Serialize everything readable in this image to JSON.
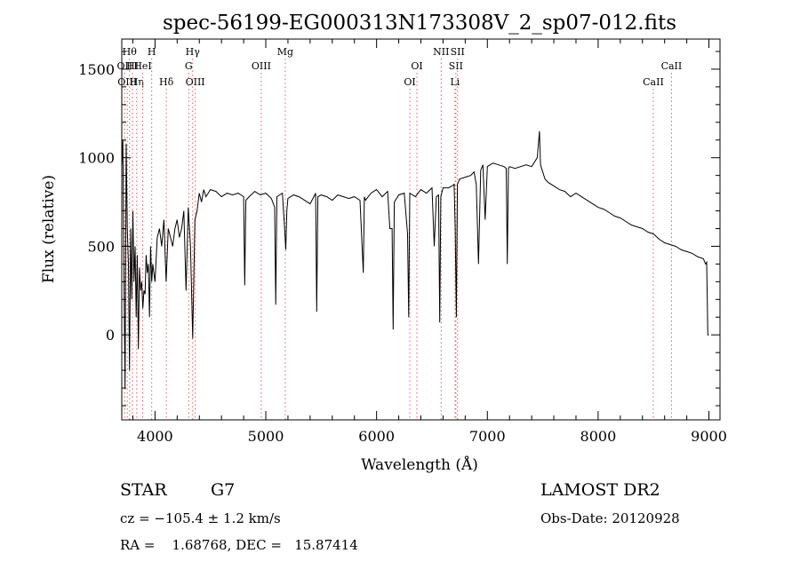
{
  "chart_data": {
    "type": "line",
    "title": "spec-56199-EG000313N173308V_2_sp07-012.fits",
    "xlabel": "Wavelength (Å)",
    "ylabel": "Flux (relative)",
    "xlim": [
      3700,
      9100
    ],
    "ylim": [
      -480,
      1670
    ],
    "x_ticks": [
      4000,
      5000,
      6000,
      7000,
      8000,
      9000
    ],
    "y_ticks": [
      0,
      500,
      1000,
      1500
    ],
    "grid": false,
    "series": [
      {
        "x": [
          3700,
          3710,
          3720,
          3730,
          3740,
          3750,
          3760,
          3770,
          3780,
          3790,
          3800,
          3810,
          3820,
          3830,
          3840,
          3850,
          3860,
          3870,
          3880,
          3890,
          3900,
          3910,
          3920,
          3930,
          3940,
          3950,
          3960,
          3970,
          3980,
          3990,
          4000,
          4020,
          4040,
          4060,
          4080,
          4100,
          4120,
          4140,
          4160,
          4180,
          4200,
          4220,
          4240,
          4260,
          4280,
          4300,
          4320,
          4340,
          4360,
          4380,
          4400,
          4420,
          4440,
          4460,
          4480,
          4500,
          4550,
          4600,
          4650,
          4700,
          4750,
          4800,
          4810,
          4820,
          4850,
          4900,
          4950,
          5000,
          5050,
          5080,
          5090,
          5100,
          5150,
          5170,
          5180,
          5190,
          5200,
          5250,
          5300,
          5350,
          5400,
          5450,
          5460,
          5470,
          5500,
          5550,
          5600,
          5650,
          5700,
          5750,
          5800,
          5850,
          5880,
          5890,
          5900,
          5950,
          6000,
          6050,
          6100,
          6120,
          6140,
          6150,
          6160,
          6200,
          6250,
          6280,
          6290,
          6300,
          6350,
          6400,
          6450,
          6500,
          6520,
          6540,
          6560,
          6570,
          6580,
          6600,
          6650,
          6680,
          6700,
          6710,
          6720,
          6730,
          6750,
          6800,
          6850,
          6880,
          6900,
          6920,
          6940,
          6960,
          6980,
          7000,
          7050,
          7100,
          7150,
          7170,
          7180,
          7190,
          7200,
          7250,
          7300,
          7350,
          7400,
          7450,
          7470,
          7480,
          7490,
          7500,
          7510,
          7520,
          7550,
          7600,
          7650,
          7700,
          7750,
          7800,
          7850,
          7900,
          7950,
          8000,
          8050,
          8100,
          8150,
          8200,
          8250,
          8300,
          8350,
          8400,
          8450,
          8500,
          8550,
          8600,
          8650,
          8700,
          8750,
          8800,
          8850,
          8900,
          8950,
          8970,
          8980,
          8990,
          9000
        ],
        "y": [
          950,
          1100,
          300,
          -300,
          1080,
          600,
          400,
          -200,
          600,
          200,
          700,
          300,
          500,
          100,
          450,
          -80,
          380,
          250,
          300,
          150,
          250,
          230,
          450,
          350,
          400,
          100,
          500,
          300,
          400,
          350,
          300,
          550,
          600,
          500,
          650,
          300,
          600,
          550,
          500,
          600,
          650,
          550,
          600,
          700,
          250,
          720,
          500,
          -20,
          650,
          700,
          800,
          750,
          820,
          780,
          800,
          820,
          810,
          780,
          800,
          790,
          800,
          780,
          280,
          760,
          780,
          810,
          790,
          800,
          770,
          720,
          170,
          780,
          800,
          600,
          480,
          700,
          770,
          790,
          780,
          760,
          740,
          800,
          130,
          780,
          790,
          780,
          760,
          790,
          780,
          770,
          780,
          760,
          350,
          780,
          760,
          800,
          820,
          780,
          810,
          600,
          600,
          30,
          750,
          790,
          800,
          570,
          100,
          800,
          780,
          820,
          800,
          830,
          500,
          780,
          790,
          70,
          780,
          830,
          830,
          840,
          850,
          600,
          100,
          850,
          880,
          890,
          900,
          920,
          850,
          400,
          930,
          960,
          650,
          950,
          970,
          960,
          950,
          940,
          400,
          940,
          950,
          940,
          950,
          960,
          950,
          1000,
          1150,
          960,
          940,
          920,
          900,
          880,
          860,
          840,
          820,
          810,
          780,
          800,
          780,
          760,
          740,
          720,
          710,
          690,
          670,
          660,
          640,
          620,
          610,
          600,
          580,
          570,
          540,
          520,
          510,
          500,
          480,
          470,
          460,
          440,
          430,
          400,
          410,
          0,
          0
        ]
      }
    ],
    "line_markers": [
      {
        "wavelength": 3727,
        "label": "OII",
        "row": 1
      },
      {
        "wavelength": 3750,
        "label": "OIII",
        "row": 2
      },
      {
        "wavelength": 3770,
        "label": "Hθ",
        "row": 0
      },
      {
        "wavelength": 3797,
        "label": "HI",
        "row": 1
      },
      {
        "wavelength": 3835,
        "label": "Hη",
        "row": 2
      },
      {
        "wavelength": 3889,
        "label": "HeI",
        "row": 1
      },
      {
        "wavelength": 3970,
        "label": "H",
        "row": 0
      },
      {
        "wavelength": 4102,
        "label": "Hδ",
        "row": 2
      },
      {
        "wavelength": 4304,
        "label": "G",
        "row": 1
      },
      {
        "wavelength": 4340,
        "label": "Hγ",
        "row": 0
      },
      {
        "wavelength": 4363,
        "label": "OIII",
        "row": 2
      },
      {
        "wavelength": 4959,
        "label": "OIII",
        "row": 1
      },
      {
        "wavelength": 5176,
        "label": "Mg",
        "row": 0
      },
      {
        "wavelength": 6300,
        "label": "OI",
        "row": 2
      },
      {
        "wavelength": 6364,
        "label": "OI",
        "row": 1
      },
      {
        "wavelength": 6583,
        "label": "NII",
        "row": 0
      },
      {
        "wavelength": 6708,
        "label": "Li",
        "row": 2
      },
      {
        "wavelength": 6716,
        "label": "SII",
        "row": 1
      },
      {
        "wavelength": 6731,
        "label": "SII",
        "row": 0
      },
      {
        "wavelength": 8498,
        "label": "CaII",
        "row": 2
      },
      {
        "wavelength": 8662,
        "label": "CaII",
        "row": 1
      }
    ]
  },
  "info": {
    "class": "STAR",
    "subclass": "G7",
    "survey": "LAMOST DR2",
    "cz": "cz = −105.4 ± 1.2 km/s",
    "obs_date": "Obs-Date: 20120928",
    "radec": "RA =    1.68768, DEC =   15.87414"
  }
}
